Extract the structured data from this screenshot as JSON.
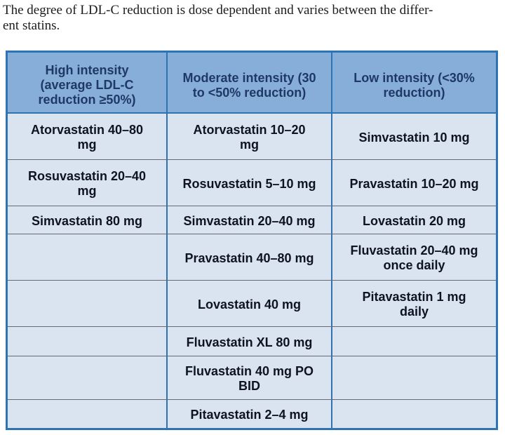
{
  "intro": {
    "line1": "The degree of LDL-C reduction is dose dependent and varies between the differ-",
    "line2": "ent statins.",
    "full_text": "The degree of LDL-C reduction is dose dependent and varies between the different statins."
  },
  "table": {
    "headers": [
      "High intensity\n(average LDL-C\nreduction ≥50%)",
      "Moderate intensity (30\nto <50% reduction)",
      "Low intensity (<30%\nreduction)"
    ],
    "rows": [
      [
        "Atorvastatin 40–80\nmg",
        "Atorvastatin 10–20\nmg",
        "Simvastatin 10 mg"
      ],
      [
        "Rosuvastatin 20–40\nmg",
        "Rosuvastatin 5–10 mg",
        "Pravastatin 10–20 mg"
      ],
      [
        "Simvastatin 80 mg",
        "Simvastatin 20–40 mg",
        "Lovastatin 20 mg"
      ],
      [
        "",
        "Pravastatin 40–80 mg",
        "Fluvastatin 20–40 mg\nonce daily"
      ],
      [
        "",
        "Lovastatin 40 mg",
        "Pitavastatin 1 mg\ndaily"
      ],
      [
        "",
        "Fluvastatin XL 80 mg",
        ""
      ],
      [
        "",
        "Fluvastatin 40 mg PO\nBID",
        ""
      ],
      [
        "",
        "Pitavastatin 2–4 mg",
        ""
      ]
    ],
    "colors": {
      "blue": "#2e74b5",
      "header_bg": "#87add9",
      "body_bg": "#dae4f1",
      "row_line": "#666a70",
      "header_text": "#1f3864",
      "body_text": "#0f1320",
      "para_text": "#1c1c1c"
    }
  }
}
